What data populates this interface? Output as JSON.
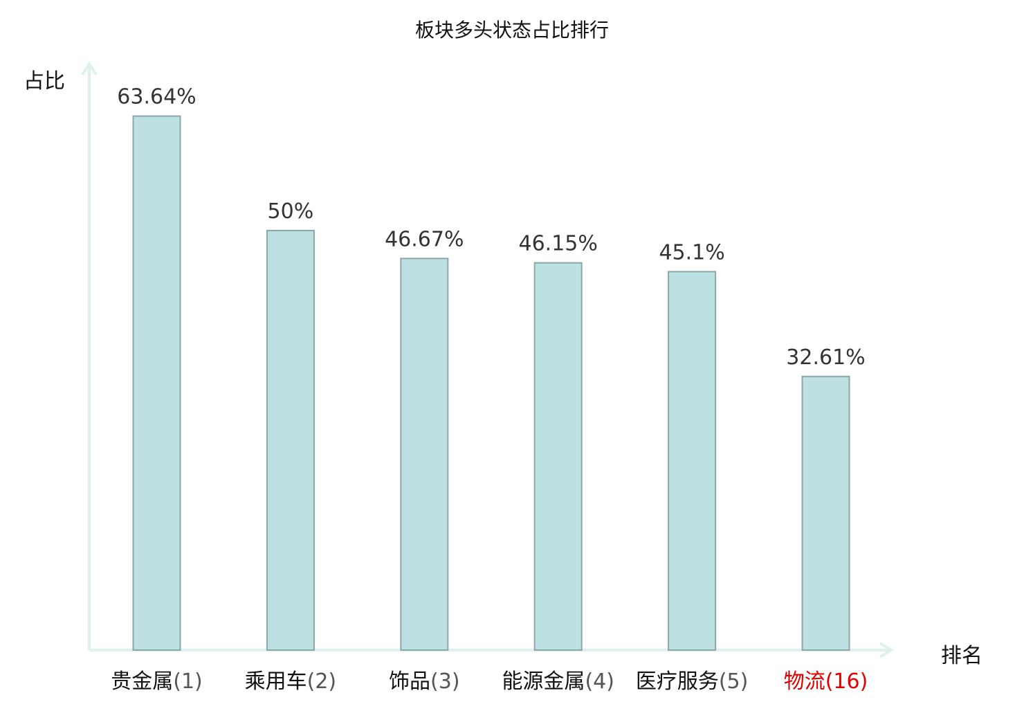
{
  "chart_data": {
    "type": "bar",
    "title": "板块多头状态占比排行",
    "ylabel": "占比",
    "xlabel": "排名",
    "categories": [
      {
        "name": "贵金属",
        "rank": "(1)",
        "highlight": false
      },
      {
        "name": "乘用车",
        "rank": "(2)",
        "highlight": false
      },
      {
        "name": "饰品",
        "rank": "(3)",
        "highlight": false
      },
      {
        "name": "能源金属",
        "rank": "(4)",
        "highlight": false
      },
      {
        "name": "医疗服务",
        "rank": "(5)",
        "highlight": false
      },
      {
        "name": "物流",
        "rank": "(16)",
        "highlight": true
      }
    ],
    "values": [
      63.64,
      50,
      46.67,
      46.15,
      45.1,
      32.61
    ],
    "value_labels": [
      "63.64%",
      "50%",
      "46.67%",
      "46.15%",
      "45.1%",
      "32.61%"
    ],
    "ylim": [
      0,
      100
    ],
    "grid": false,
    "colors": {
      "bar_fill": "#bde0e3",
      "bar_stroke": "#8aa7aa",
      "axis": "#dff1ef",
      "label_text": "#333333",
      "category_text": "#111111",
      "rank_text": "#555555",
      "highlight_text": "#e00000"
    }
  }
}
